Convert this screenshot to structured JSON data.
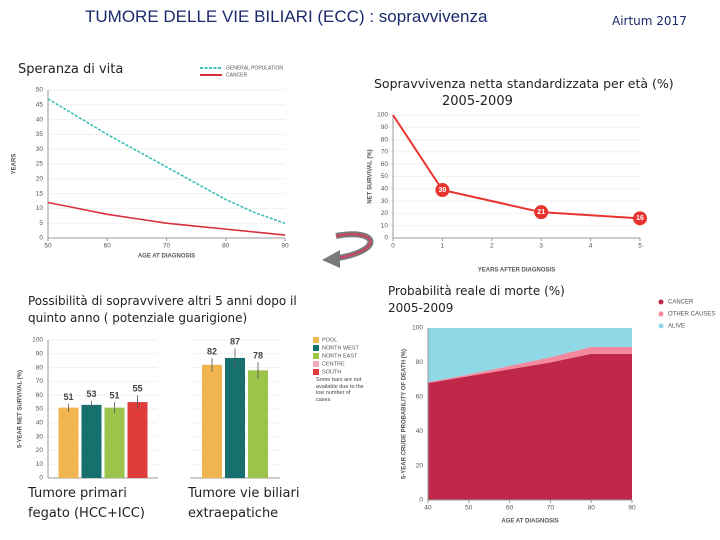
{
  "slide": {
    "title": "TUMORE DELLE VIE BILIARI (ECC) : sopravvivenza",
    "source": "Airtum 2017"
  },
  "chart_data": [
    {
      "type": "line",
      "title": "Speranza di vita",
      "x_label": "AGE AT DIAGNOSIS",
      "y_label": "YEARS",
      "x": [
        50,
        55,
        60,
        65,
        70,
        75,
        80,
        85,
        90
      ],
      "series": [
        {
          "name": "GENERAL POPULATION",
          "color": "#3dbfb5",
          "dashed": true,
          "values": [
            47,
            41,
            35,
            29.5,
            24,
            18.5,
            13,
            8.5,
            5
          ]
        },
        {
          "name": "CANCER",
          "color": "#d9303e",
          "dashed": false,
          "values": [
            12,
            10,
            8,
            6.5,
            5,
            4,
            3,
            2,
            1
          ]
        }
      ],
      "xlim": [
        50,
        90
      ],
      "xticks": [
        50,
        60,
        70,
        80,
        90
      ],
      "ylim": [
        0,
        50
      ],
      "yticks": [
        0,
        5,
        10,
        15,
        20,
        25,
        30,
        35,
        40,
        45,
        50
      ],
      "grid": true,
      "markers": false
    },
    {
      "type": "line",
      "title": "Sopravvivenza netta standardizzata per età (%)",
      "subtitle": "2005-2009",
      "x_label": "YEARS AFTER DIAGNOSIS",
      "y_label": "NET SURVIVAL (%)",
      "x": [
        0,
        1,
        3,
        5
      ],
      "series": [
        {
          "name": "NET SURVIVAL",
          "color": "#e8342f",
          "dashed": false,
          "values": [
            100,
            39,
            21,
            16
          ]
        }
      ],
      "xlim": [
        0,
        5
      ],
      "xticks": [
        0,
        1,
        2,
        3,
        4,
        5
      ],
      "ylim": [
        0,
        100
      ],
      "yticks": [
        0,
        10,
        20,
        30,
        40,
        50,
        60,
        70,
        80,
        90,
        100
      ],
      "grid": true,
      "markers": true
    },
    {
      "type": "bar",
      "title": "Possibilità di sopravvivere altri 5 anni dopo il quinto anno ( potenziale guarigione)",
      "y_label": "5-YEAR NET SURVIVAL (%)",
      "groups": [
        "Tumore primari fegato (HCC+ICC)",
        "Tumore vie biliari extraepatiche"
      ],
      "series": [
        {
          "name": "POOL",
          "color": "#f0b450",
          "values": [
            51,
            82
          ],
          "errors": [
            3,
            5
          ]
        },
        {
          "name": "NORTH WEST",
          "color": "#17706e",
          "values": [
            53,
            87
          ],
          "errors": [
            3,
            7
          ]
        },
        {
          "name": "NORTH EAST",
          "color": "#9cc44a",
          "values": [
            51,
            78
          ],
          "errors": [
            4,
            6
          ]
        },
        {
          "name": "CENTRE",
          "color": "#f4a8b8",
          "values": [
            null,
            null
          ],
          "errors": [
            null,
            null
          ]
        },
        {
          "name": "SOUTH",
          "color": "#e03c3c",
          "values": [
            55,
            null
          ],
          "errors": [
            5,
            null
          ]
        }
      ],
      "note": "Some bars are not available due to the low number of cases",
      "ylim": [
        0,
        100
      ],
      "yticks": [
        0,
        10,
        20,
        30,
        40,
        50,
        60,
        70,
        80,
        90,
        100
      ],
      "grid": true
    },
    {
      "type": "area",
      "title": "Probabilità reale di morte (%) 2005-2009",
      "x_label": "AGE AT DIAGNOSIS",
      "y_label": "5-YEAR CRUDE PROBABILITY OF DEATH (%)",
      "x": [
        40,
        50,
        60,
        70,
        80,
        90
      ],
      "series": [
        {
          "name": "CANCER",
          "color": "#c0284a",
          "values": [
            68,
            72,
            76,
            80,
            85,
            85
          ]
        },
        {
          "name": "OTHER CAUSES",
          "color": "#f48aa0",
          "values": [
            0.5,
            1,
            2,
            3,
            4,
            4
          ]
        },
        {
          "name": "ALIVE",
          "color": "#8fd8e6",
          "values": [
            31.5,
            27,
            22,
            17,
            11,
            11
          ]
        }
      ],
      "xlim": [
        40,
        90
      ],
      "xticks": [
        40,
        50,
        60,
        70,
        80,
        90
      ],
      "ylim": [
        0,
        100
      ],
      "yticks": [
        0,
        20,
        40,
        60,
        80,
        100
      ],
      "grid": false
    }
  ]
}
